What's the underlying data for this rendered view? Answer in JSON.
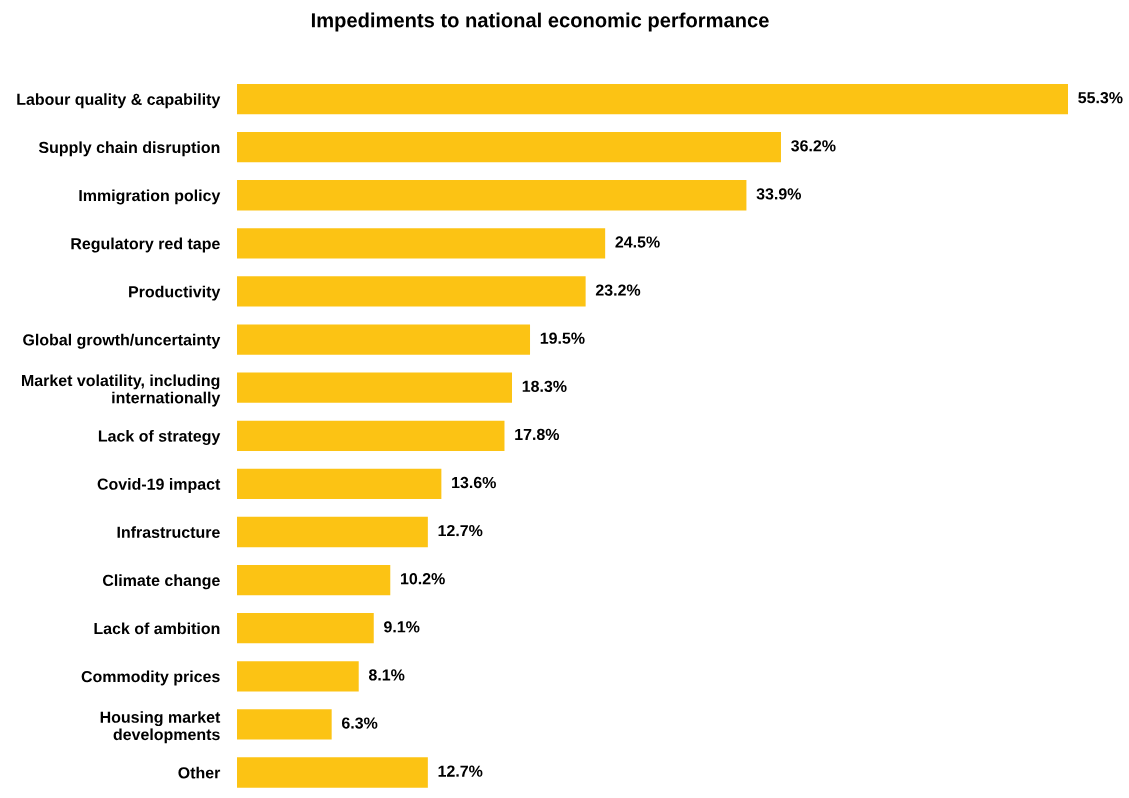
{
  "chart_data": {
    "type": "bar",
    "orientation": "horizontal",
    "title": "Impediments to national economic performance",
    "categories": [
      "Labour quality & capability",
      "Supply chain disruption",
      "Immigration policy",
      "Regulatory red tape",
      "Productivity",
      "Global growth/uncertainty",
      "Market volatility, including\ninternationally",
      "Lack of strategy",
      "Covid-19 impact",
      "Infrastructure",
      "Climate change",
      "Lack of ambition",
      "Commodity prices",
      "Housing market\ndevelopments",
      "Other"
    ],
    "values": [
      55.3,
      36.2,
      33.9,
      24.5,
      23.2,
      19.5,
      18.3,
      17.8,
      13.6,
      12.7,
      10.2,
      9.1,
      8.1,
      6.3,
      12.7
    ],
    "value_labels": [
      "55.3%",
      "36.2%",
      "33.9%",
      "24.5%",
      "23.2%",
      "19.5%",
      "18.3%",
      "17.8%",
      "13.6%",
      "12.7%",
      "10.2%",
      "9.1%",
      "8.1%",
      "6.3%",
      "12.7%"
    ],
    "color": "#fcc314",
    "grid": false
  }
}
